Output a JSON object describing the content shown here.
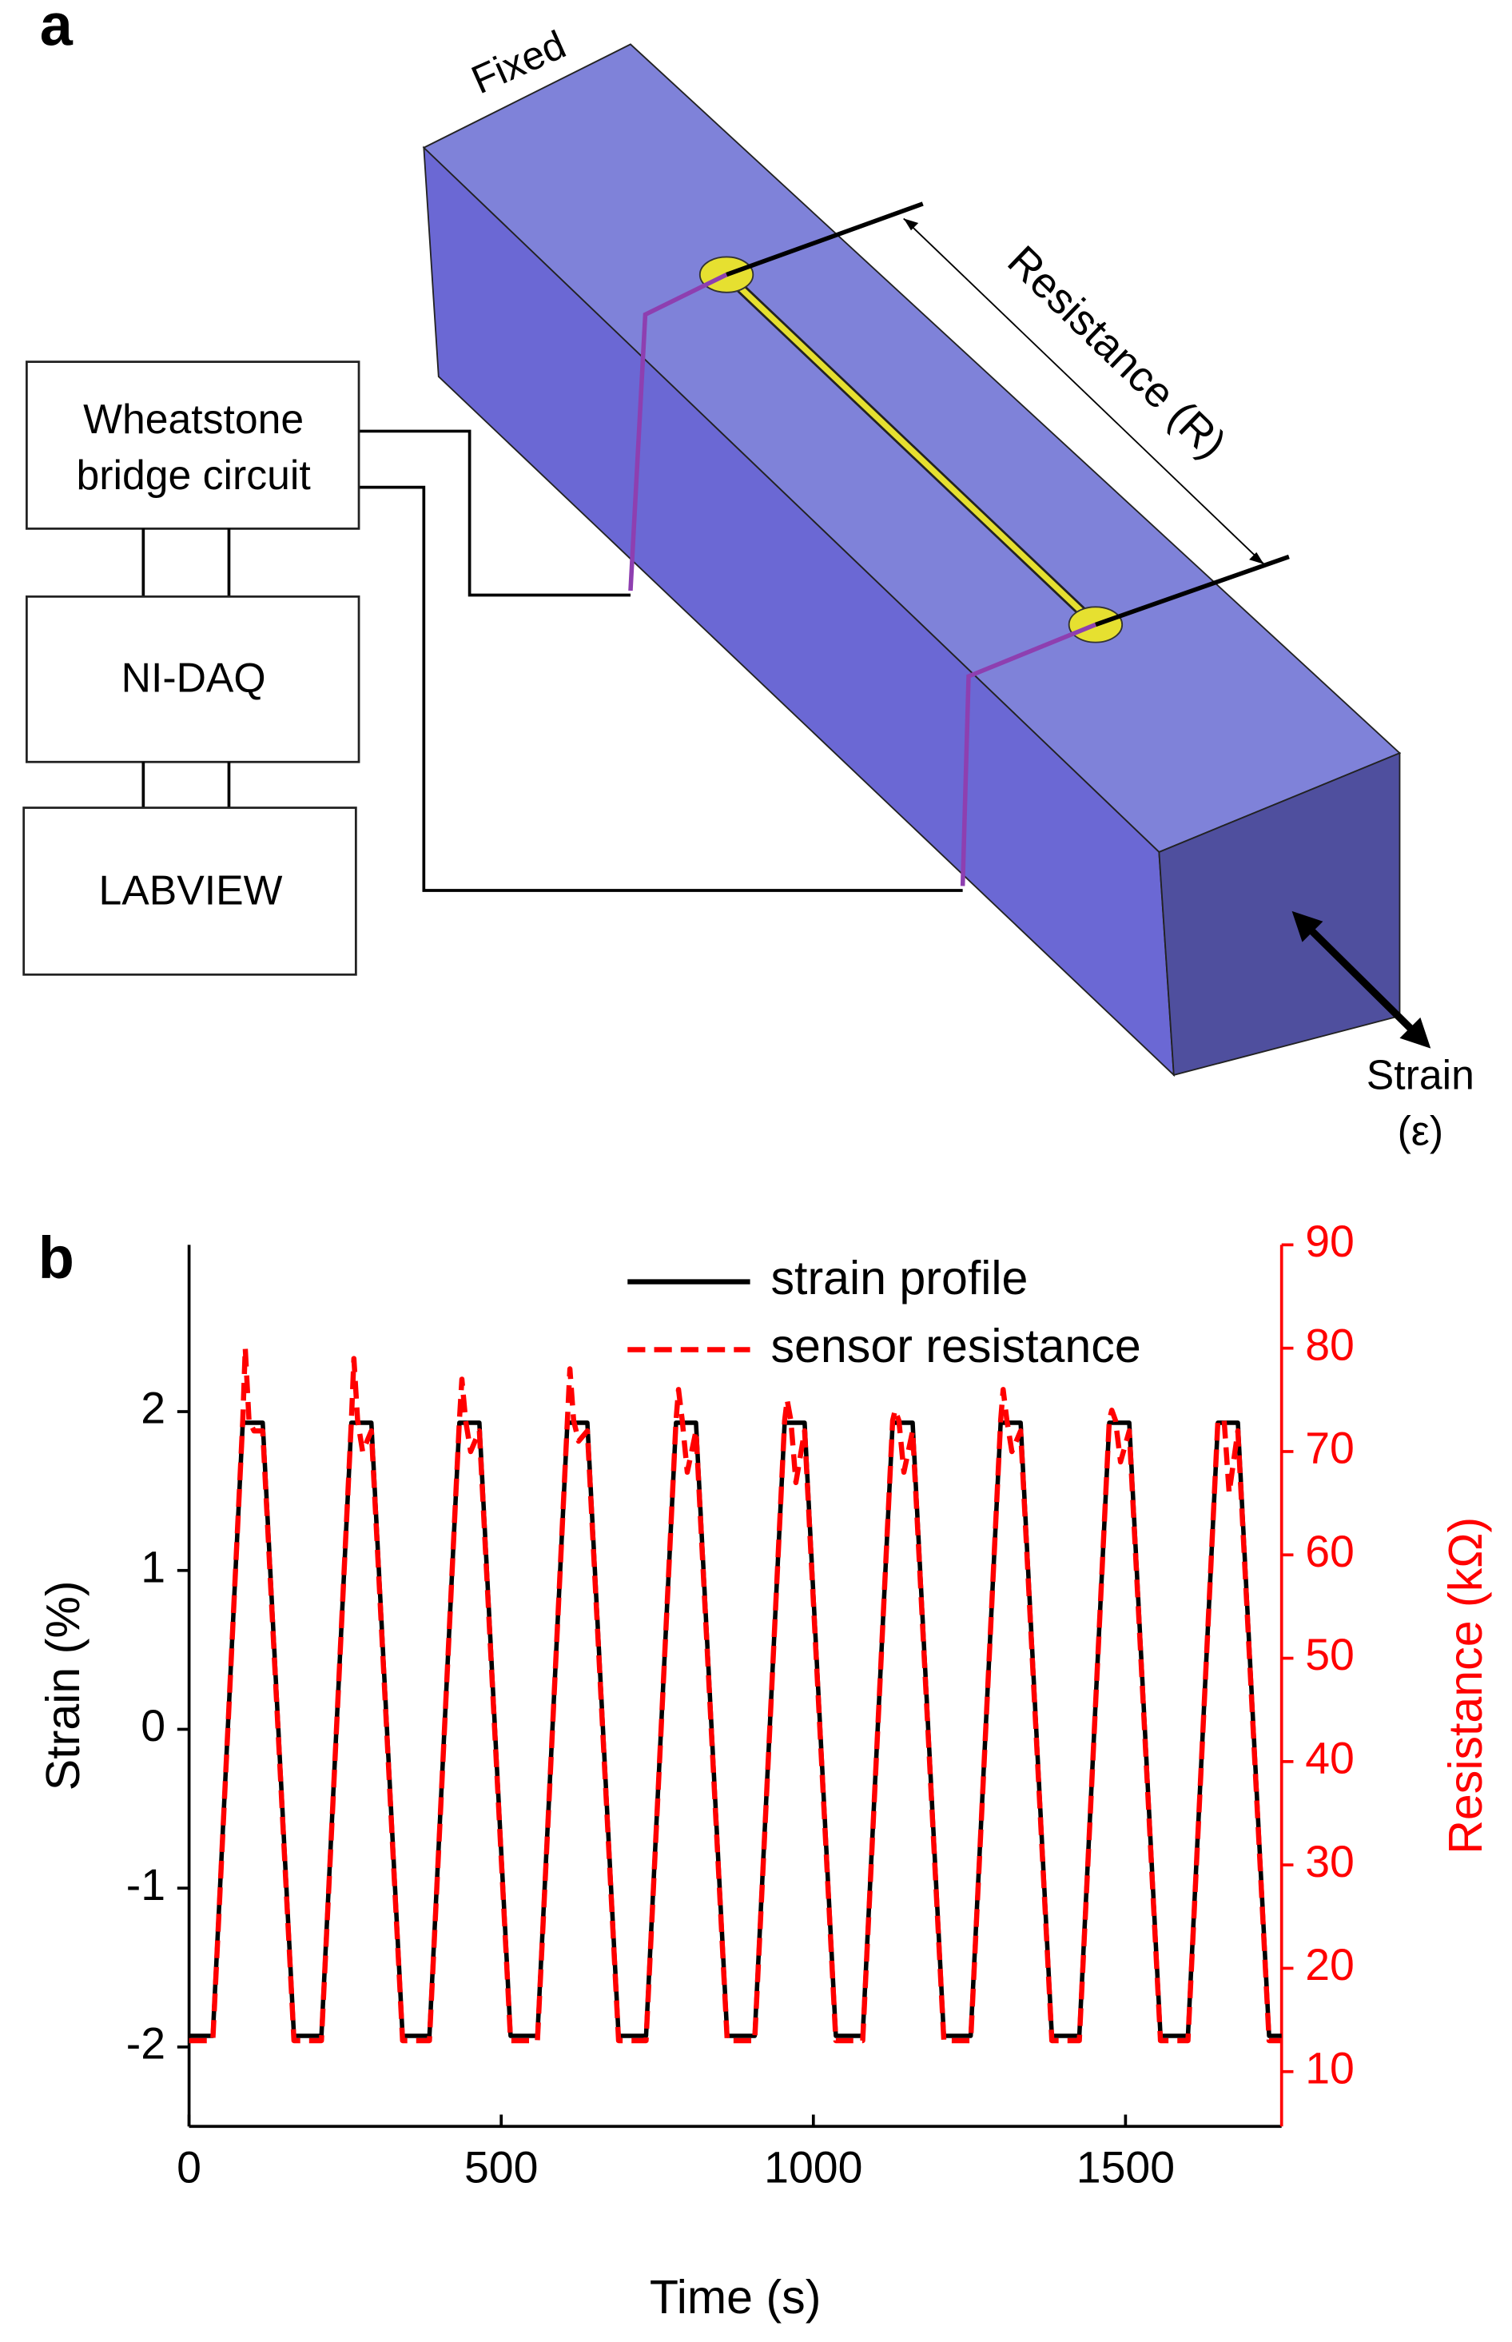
{
  "panel_a": {
    "label": "a",
    "fixed": "Fixed",
    "resistance": "Resistance (R)",
    "bridge": [
      "Wheatstone",
      "bridge circuit"
    ],
    "daq": "NI-DAQ",
    "labview": "LABVIEW",
    "strain": [
      "Strain",
      "(ε)"
    ]
  },
  "chart_data": {
    "type": "line",
    "panel_label": "b",
    "x_label": "Time (s)",
    "y_label": "Strain (%)",
    "y2_label": "Resistance (kΩ)",
    "x": [
      0,
      38,
      86,
      90,
      96,
      104,
      118,
      168,
      212,
      260,
      264,
      270,
      278,
      292,
      342,
      385,
      433,
      437,
      443,
      451,
      465,
      515,
      558,
      606,
      610,
      616,
      624,
      638,
      688,
      732,
      780,
      784,
      790,
      798,
      812,
      862,
      906,
      954,
      958,
      964,
      972,
      986,
      1036,
      1079,
      1127,
      1131,
      1137,
      1145,
      1159,
      1209,
      1252,
      1300,
      1304,
      1310,
      1318,
      1332,
      1382,
      1426,
      1474,
      1478,
      1484,
      1492,
      1506,
      1556,
      1600,
      1648,
      1652,
      1658,
      1666,
      1680,
      1730,
      1750
    ],
    "series": [
      {
        "name": "strain profile",
        "color": "#000000",
        "axis": "y",
        "dash": false,
        "values": [
          -1.93,
          -1.93,
          1.93,
          1.93,
          1.93,
          1.93,
          1.93,
          -1.93,
          -1.93,
          1.93,
          1.93,
          1.93,
          1.93,
          1.93,
          -1.93,
          -1.93,
          1.93,
          1.93,
          1.93,
          1.93,
          1.93,
          -1.93,
          -1.93,
          1.93,
          1.93,
          1.93,
          1.93,
          1.93,
          -1.93,
          -1.93,
          1.93,
          1.93,
          1.93,
          1.93,
          1.93,
          -1.93,
          -1.93,
          1.93,
          1.93,
          1.93,
          1.93,
          1.93,
          -1.93,
          -1.93,
          1.93,
          1.93,
          1.93,
          1.93,
          1.93,
          -1.93,
          -1.93,
          1.93,
          1.93,
          1.93,
          1.93,
          1.93,
          -1.93,
          -1.93,
          1.93,
          1.93,
          1.93,
          1.93,
          1.93,
          -1.93,
          -1.93,
          1.93,
          1.93,
          1.93,
          1.93,
          1.93,
          -1.93,
          -1.93
        ]
      },
      {
        "name": "sensor resistance",
        "color": "#ff0000",
        "axis": "y2",
        "dash": true,
        "values": [
          13,
          13,
          73,
          80,
          73,
          72,
          72,
          13,
          13,
          73,
          79,
          73,
          70,
          72,
          13,
          13,
          73,
          77,
          73,
          70,
          72,
          13,
          13,
          73,
          78,
          73,
          71,
          72,
          13,
          13,
          73,
          76,
          73,
          68,
          72,
          13,
          13,
          73,
          75,
          73,
          67,
          72,
          13,
          13,
          73,
          74,
          73,
          68,
          72,
          13,
          13,
          73,
          76,
          73,
          70,
          72,
          13,
          13,
          73,
          74,
          73,
          69,
          72,
          13,
          13,
          73,
          73,
          73,
          66,
          72,
          13,
          13
        ]
      }
    ],
    "xlim": [
      0,
      1750
    ],
    "xticks": [
      0,
      500,
      1000,
      1500
    ],
    "ylim": [
      -2.5,
      3.05
    ],
    "yticks": [
      -2,
      -1,
      0,
      1,
      2
    ],
    "y2lim": [
      4.7,
      90
    ],
    "y2ticks": [
      10,
      20,
      30,
      40,
      50,
      60,
      70,
      80,
      90
    ]
  }
}
